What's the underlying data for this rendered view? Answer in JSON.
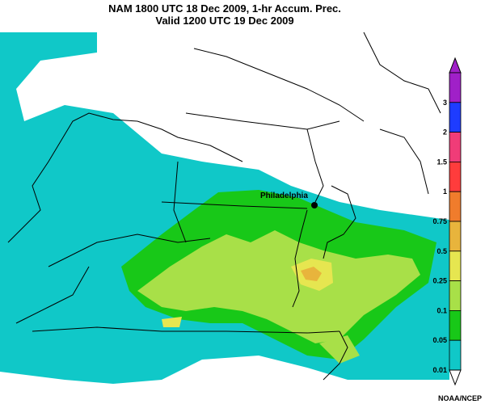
{
  "title": {
    "line1": "NAM 1800 UTC  18 Dec 2009, 1-hr Accum. Prec.",
    "line2": "Valid 1200 UTC  19 Dec 2009"
  },
  "city": {
    "name": "Philadelphia"
  },
  "credit": "NOAA/NCEP",
  "legend": {
    "levels": [
      {
        "label": "3",
        "color": "#a020c8"
      },
      {
        "label": "2",
        "color": "#1e3cff"
      },
      {
        "label": "1.5",
        "color": "#f03c78"
      },
      {
        "label": "1",
        "color": "#ff3c3c"
      },
      {
        "label": "0.75",
        "color": "#f07c2c"
      },
      {
        "label": "0.5",
        "color": "#e8b43c"
      },
      {
        "label": "0.25",
        "color": "#e6e650"
      },
      {
        "label": "0.1",
        "color": "#a8e048"
      },
      {
        "label": "0.05",
        "color": "#18c818"
      },
      {
        "label": "0.01",
        "color": "#10c8c8"
      }
    ]
  },
  "colors": {
    "light": "#10c8c8",
    "moderate": "#18c818",
    "heavy": "#a8e048",
    "peak": "#e6e650",
    "max": "#e8b43c"
  }
}
